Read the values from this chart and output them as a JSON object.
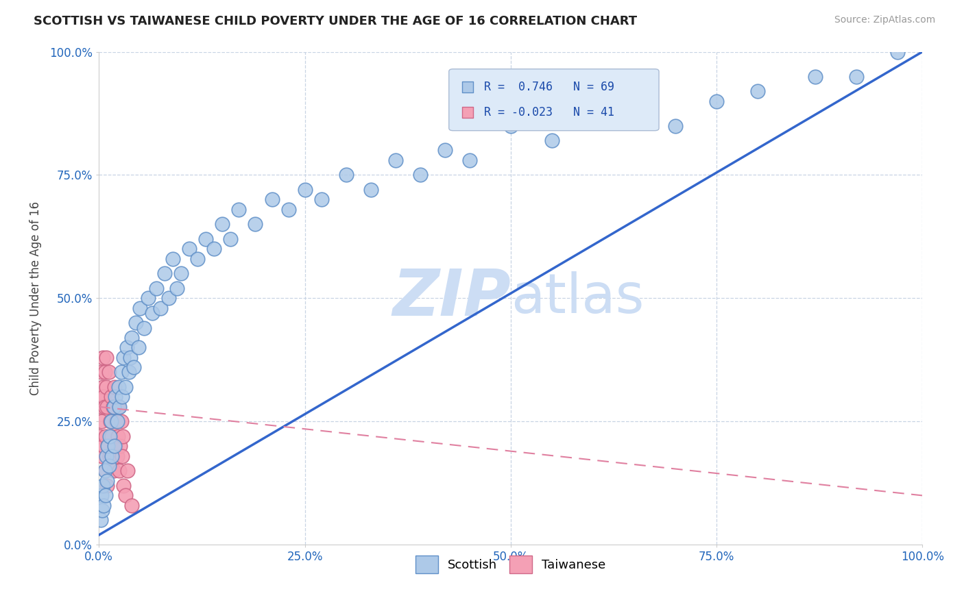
{
  "title": "SCOTTISH VS TAIWANESE CHILD POVERTY UNDER THE AGE OF 16 CORRELATION CHART",
  "source_text": "Source: ZipAtlas.com",
  "ylabel": "Child Poverty Under the Age of 16",
  "xlim": [
    0.0,
    1.0
  ],
  "ylim": [
    0.0,
    1.0
  ],
  "xtick_labels": [
    "0.0%",
    "25.0%",
    "50.0%",
    "75.0%",
    "100.0%"
  ],
  "ytick_labels": [
    "0.0%",
    "25.0%",
    "50.0%",
    "75.0%",
    "100.0%"
  ],
  "xtick_positions": [
    0.0,
    0.25,
    0.5,
    0.75,
    1.0
  ],
  "ytick_positions": [
    0.0,
    0.25,
    0.5,
    0.75,
    1.0
  ],
  "scottish_R": 0.746,
  "scottish_N": 69,
  "taiwanese_R": -0.023,
  "taiwanese_N": 41,
  "scottish_color": "#adc9e8",
  "taiwanese_color": "#f4a0b5",
  "scottish_edge_color": "#6090c8",
  "taiwanese_edge_color": "#d06888",
  "scottish_line_color": "#3366cc",
  "taiwanese_line_color": "#e080a0",
  "watermark_color": "#ccddf4",
  "background_color": "#ffffff",
  "grid_color": "#c8d4e4",
  "scottish_x": [
    0.002,
    0.003,
    0.004,
    0.005,
    0.006,
    0.007,
    0.008,
    0.009,
    0.01,
    0.011,
    0.012,
    0.013,
    0.015,
    0.016,
    0.018,
    0.019,
    0.02,
    0.022,
    0.024,
    0.025,
    0.027,
    0.028,
    0.03,
    0.032,
    0.034,
    0.036,
    0.038,
    0.04,
    0.042,
    0.045,
    0.048,
    0.05,
    0.055,
    0.06,
    0.065,
    0.07,
    0.075,
    0.08,
    0.085,
    0.09,
    0.095,
    0.1,
    0.11,
    0.12,
    0.13,
    0.14,
    0.15,
    0.16,
    0.17,
    0.19,
    0.21,
    0.23,
    0.25,
    0.27,
    0.3,
    0.33,
    0.36,
    0.39,
    0.42,
    0.45,
    0.5,
    0.55,
    0.6,
    0.7,
    0.75,
    0.8,
    0.87,
    0.92,
    0.97
  ],
  "scottish_y": [
    0.05,
    0.1,
    0.07,
    0.12,
    0.08,
    0.15,
    0.1,
    0.18,
    0.13,
    0.2,
    0.16,
    0.22,
    0.25,
    0.18,
    0.28,
    0.2,
    0.3,
    0.25,
    0.32,
    0.28,
    0.35,
    0.3,
    0.38,
    0.32,
    0.4,
    0.35,
    0.38,
    0.42,
    0.36,
    0.45,
    0.4,
    0.48,
    0.44,
    0.5,
    0.47,
    0.52,
    0.48,
    0.55,
    0.5,
    0.58,
    0.52,
    0.55,
    0.6,
    0.58,
    0.62,
    0.6,
    0.65,
    0.62,
    0.68,
    0.65,
    0.7,
    0.68,
    0.72,
    0.7,
    0.75,
    0.72,
    0.78,
    0.75,
    0.8,
    0.78,
    0.85,
    0.82,
    0.88,
    0.85,
    0.9,
    0.92,
    0.95,
    0.95,
    1.0
  ],
  "taiwanese_x": [
    0.001,
    0.002,
    0.003,
    0.003,
    0.004,
    0.004,
    0.005,
    0.005,
    0.006,
    0.006,
    0.007,
    0.007,
    0.008,
    0.008,
    0.009,
    0.009,
    0.01,
    0.01,
    0.011,
    0.012,
    0.013,
    0.014,
    0.015,
    0.016,
    0.017,
    0.018,
    0.019,
    0.02,
    0.021,
    0.022,
    0.023,
    0.024,
    0.025,
    0.026,
    0.027,
    0.028,
    0.029,
    0.03,
    0.032,
    0.035,
    0.04
  ],
  "taiwanese_y": [
    0.22,
    0.3,
    0.25,
    0.35,
    0.18,
    0.28,
    0.32,
    0.38,
    0.2,
    0.3,
    0.35,
    0.28,
    0.15,
    0.22,
    0.32,
    0.38,
    0.12,
    0.28,
    0.2,
    0.35,
    0.18,
    0.25,
    0.3,
    0.22,
    0.28,
    0.15,
    0.32,
    0.2,
    0.25,
    0.18,
    0.22,
    0.28,
    0.15,
    0.2,
    0.25,
    0.18,
    0.22,
    0.12,
    0.1,
    0.15,
    0.08
  ],
  "legend_box_color": "#ddeaf8",
  "legend_box_edge": "#aabbd4",
  "scottish_line_x0": 0.0,
  "scottish_line_y0": 0.02,
  "scottish_line_x1": 1.0,
  "scottish_line_y1": 1.0,
  "taiwanese_line_x0": 0.0,
  "taiwanese_line_y0": 0.28,
  "taiwanese_line_x1": 1.0,
  "taiwanese_line_y1": 0.1
}
